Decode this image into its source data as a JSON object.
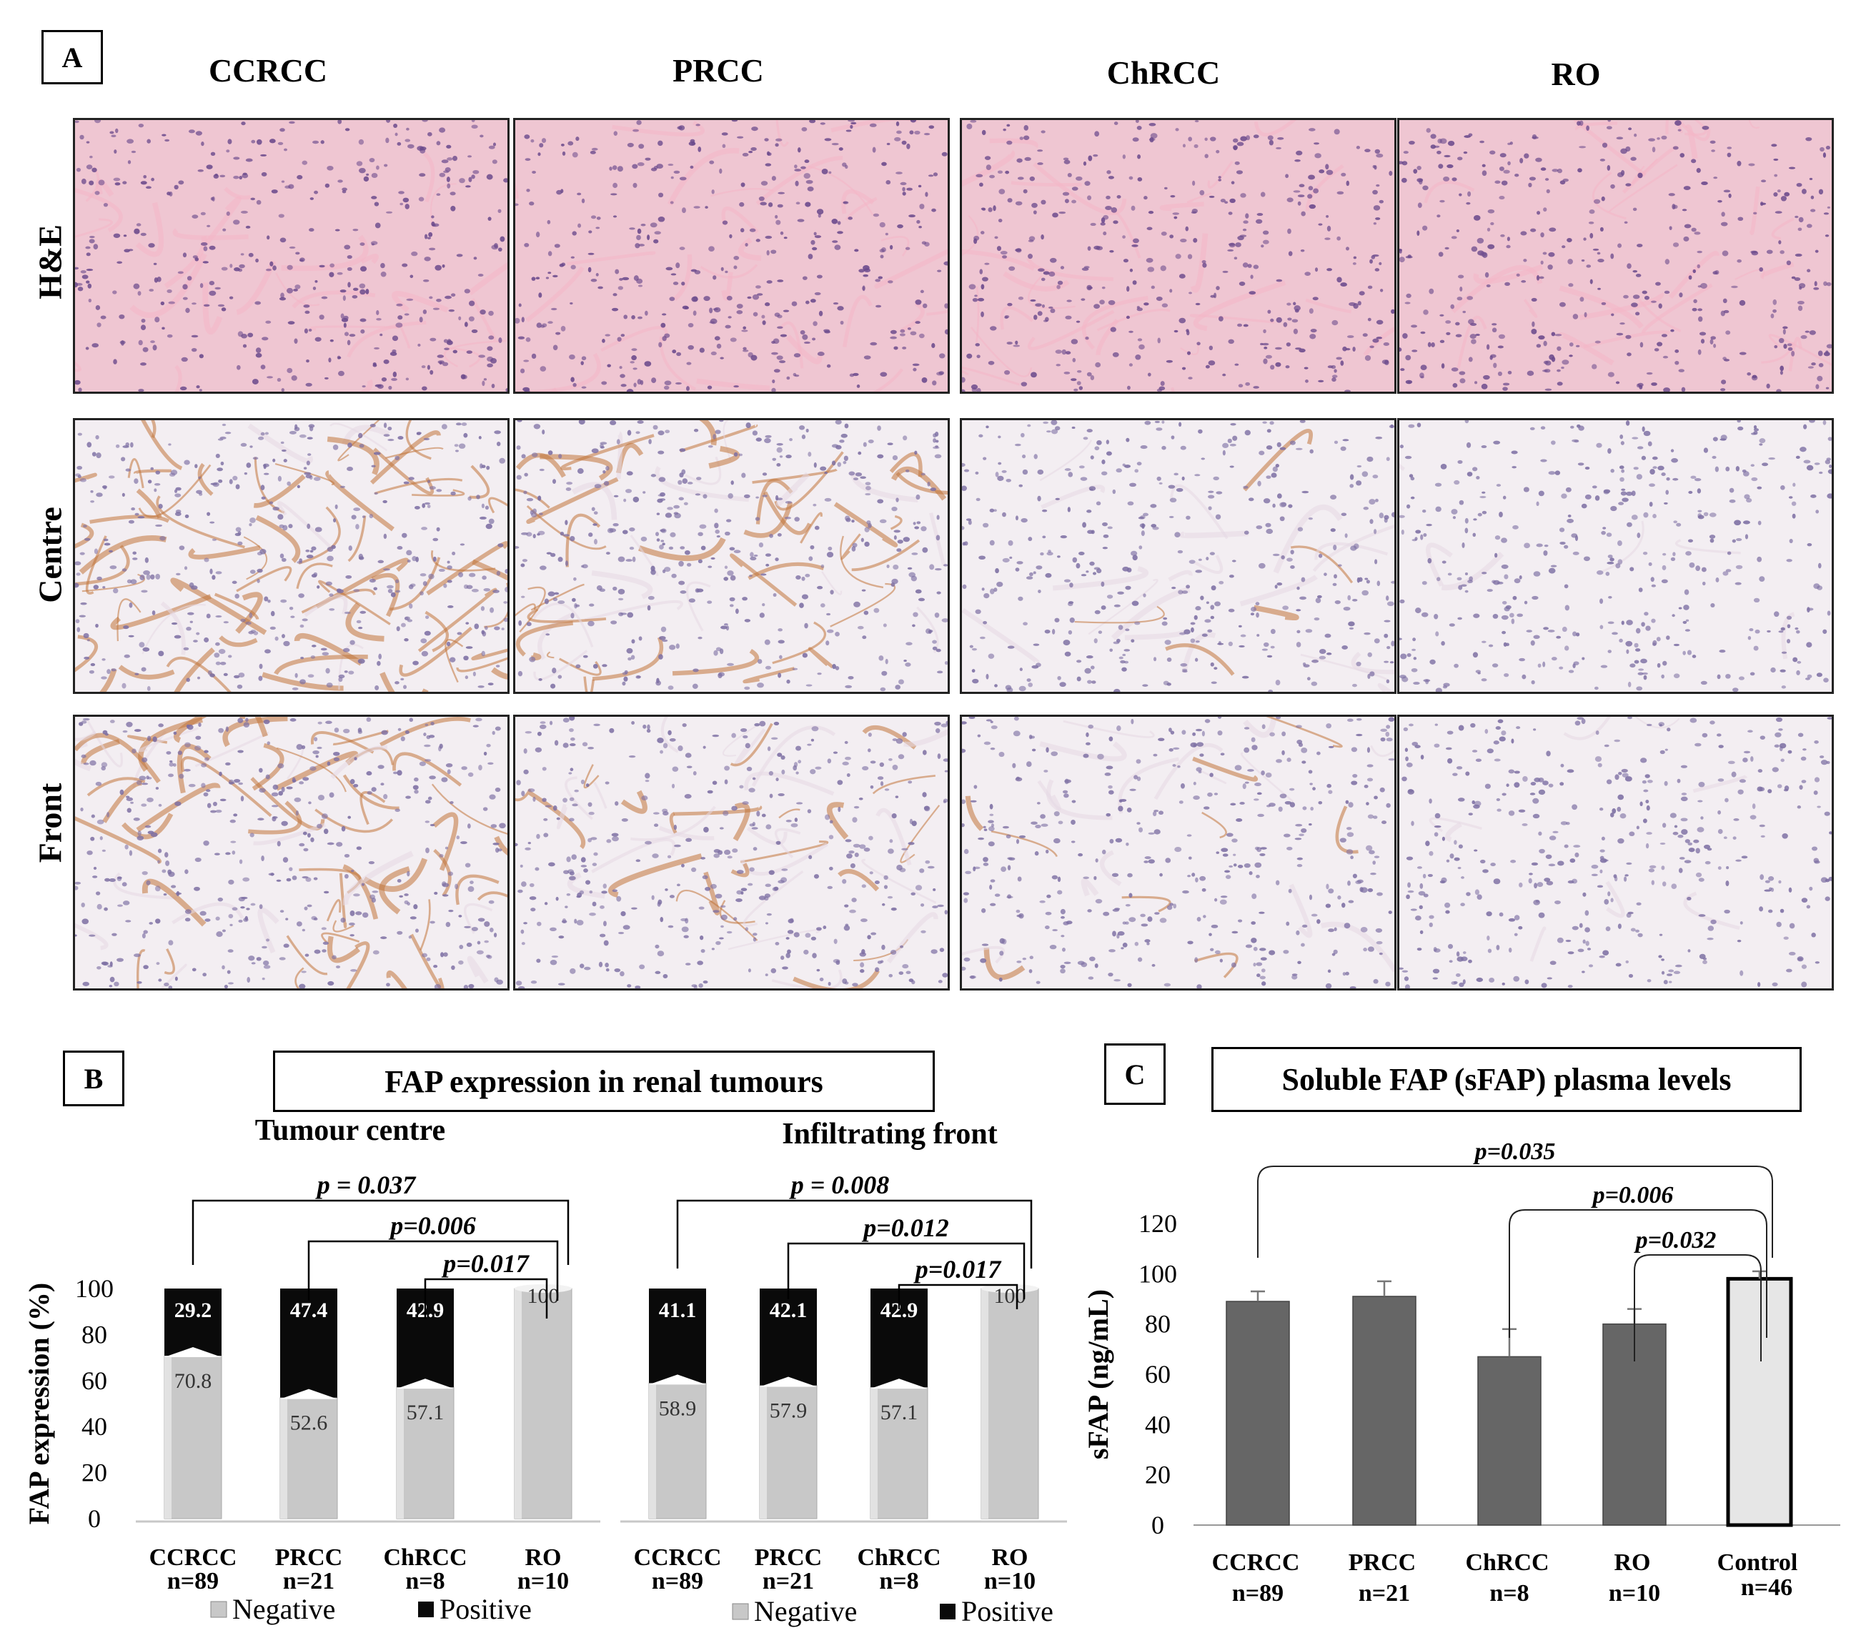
{
  "panel_a": {
    "label": "A",
    "columns": [
      "CCRCC",
      "PRCC",
      "ChRCC",
      "RO"
    ],
    "rows": [
      "H&E",
      "Centre",
      "Front"
    ]
  },
  "panel_b": {
    "label": "B",
    "title": "FAP expression in renal tumours",
    "ylabel": "FAP expression (%)",
    "legend": [
      "Negative",
      "Positive"
    ]
  },
  "panel_c": {
    "label": "C",
    "title": "Soluble FAP (sFAP) plasma levels"
  },
  "colors": {
    "negative": "#c8c8c8",
    "positive": "#0a0a0a",
    "sfap_tumour": "#666666",
    "sfap_control": "#e6e6e6",
    "he_bg": "#efc6d2",
    "he_cell": "#6b4a8c",
    "ihc_bg": "#f3eef2",
    "ihc_brown": "#c1743a"
  },
  "chart_data": [
    {
      "type": "bar",
      "title": "Tumour centre",
      "categories": [
        "CCRCC",
        "PRCC",
        "ChRCC",
        "RO"
      ],
      "category_n": [
        "n=89",
        "n=21",
        "n=8",
        "n=10"
      ],
      "series": [
        {
          "name": "Negative",
          "values": [
            70.8,
            52.6,
            57.1,
            100
          ]
        },
        {
          "name": "Positive",
          "values": [
            29.2,
            47.4,
            42.9,
            0
          ]
        }
      ],
      "ylabel": "FAP expression (%)",
      "ylim": [
        0,
        100
      ],
      "yticks": [
        0,
        20,
        40,
        60,
        80,
        100
      ],
      "stacked": true,
      "annotations": [
        {
          "text": "p = 0.037",
          "from": "CCRCC",
          "to": "RO"
        },
        {
          "text": "p=0.006",
          "from": "PRCC",
          "to": "RO"
        },
        {
          "text": "p=0.017",
          "from": "ChRCC",
          "to": "RO"
        }
      ]
    },
    {
      "type": "bar",
      "title": "Infiltrating front",
      "categories": [
        "CCRCC",
        "PRCC",
        "ChRCC",
        "RO"
      ],
      "category_n": [
        "n=89",
        "n=21",
        "n=8",
        "n=10"
      ],
      "series": [
        {
          "name": "Negative",
          "values": [
            58.9,
            57.9,
            57.1,
            100
          ]
        },
        {
          "name": "Positive",
          "values": [
            41.1,
            42.1,
            42.9,
            0
          ]
        }
      ],
      "ylim": [
        0,
        100
      ],
      "stacked": true,
      "annotations": [
        {
          "text": "p = 0.008",
          "from": "CCRCC",
          "to": "RO"
        },
        {
          "text": "p=0.012",
          "from": "PRCC",
          "to": "RO"
        },
        {
          "text": "p=0.017",
          "from": "ChRCC",
          "to": "RO"
        }
      ]
    },
    {
      "type": "bar",
      "title": "Soluble FAP (sFAP) plasma levels",
      "categories": [
        "CCRCC",
        "PRCC",
        "ChRCC",
        "RO",
        "Control"
      ],
      "category_n": [
        "n=89",
        "n=21",
        "n=8",
        "n=10",
        "n=46"
      ],
      "values": [
        89,
        91,
        67,
        80,
        98
      ],
      "errors": [
        4,
        6,
        11,
        6,
        3
      ],
      "ylabel": "sFAP (ng/mL)",
      "ylim": [
        0,
        120
      ],
      "yticks": [
        0,
        20,
        40,
        60,
        80,
        100,
        120
      ],
      "annotations": [
        {
          "text": "p=0.035",
          "from": "CCRCC",
          "to": "Control"
        },
        {
          "text": "p=0.006",
          "from": "ChRCC",
          "to": "Control"
        },
        {
          "text": "p=0.032",
          "from": "RO",
          "to": "Control"
        }
      ]
    }
  ]
}
